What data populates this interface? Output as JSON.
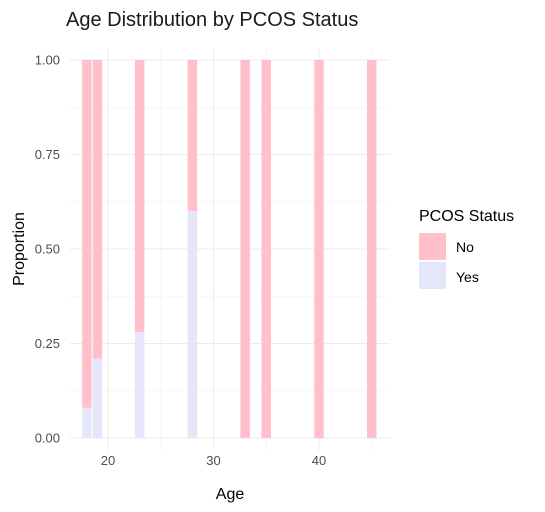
{
  "chart_data": {
    "type": "bar",
    "stacked": true,
    "title": "Age Distribution by PCOS Status",
    "xlabel": "Age",
    "ylabel": "Proportion",
    "xlim": [
      17,
      46
    ],
    "ylim": [
      0,
      1
    ],
    "x_ticks": [
      20,
      30,
      40
    ],
    "y_ticks": [
      0.0,
      0.25,
      0.5,
      0.75,
      1.0
    ],
    "y_tick_labels": [
      "0.00",
      "0.25",
      "0.50",
      "0.75",
      "1.00"
    ],
    "grid": true,
    "legend": {
      "title": "PCOS Status",
      "position": "right",
      "entries": [
        "No",
        "Yes"
      ]
    },
    "x": [
      18,
      19,
      23,
      28,
      33,
      35,
      40,
      45
    ],
    "series": [
      {
        "name": "Yes",
        "color": "#e6e6fa",
        "values": [
          0.08,
          0.21,
          0.28,
          0.6,
          0.0,
          0.0,
          0.0,
          0.0
        ]
      },
      {
        "name": "No",
        "color": "#ffc0cb",
        "values": [
          0.92,
          0.79,
          0.72,
          0.4,
          1.0,
          1.0,
          1.0,
          1.0
        ]
      }
    ]
  }
}
